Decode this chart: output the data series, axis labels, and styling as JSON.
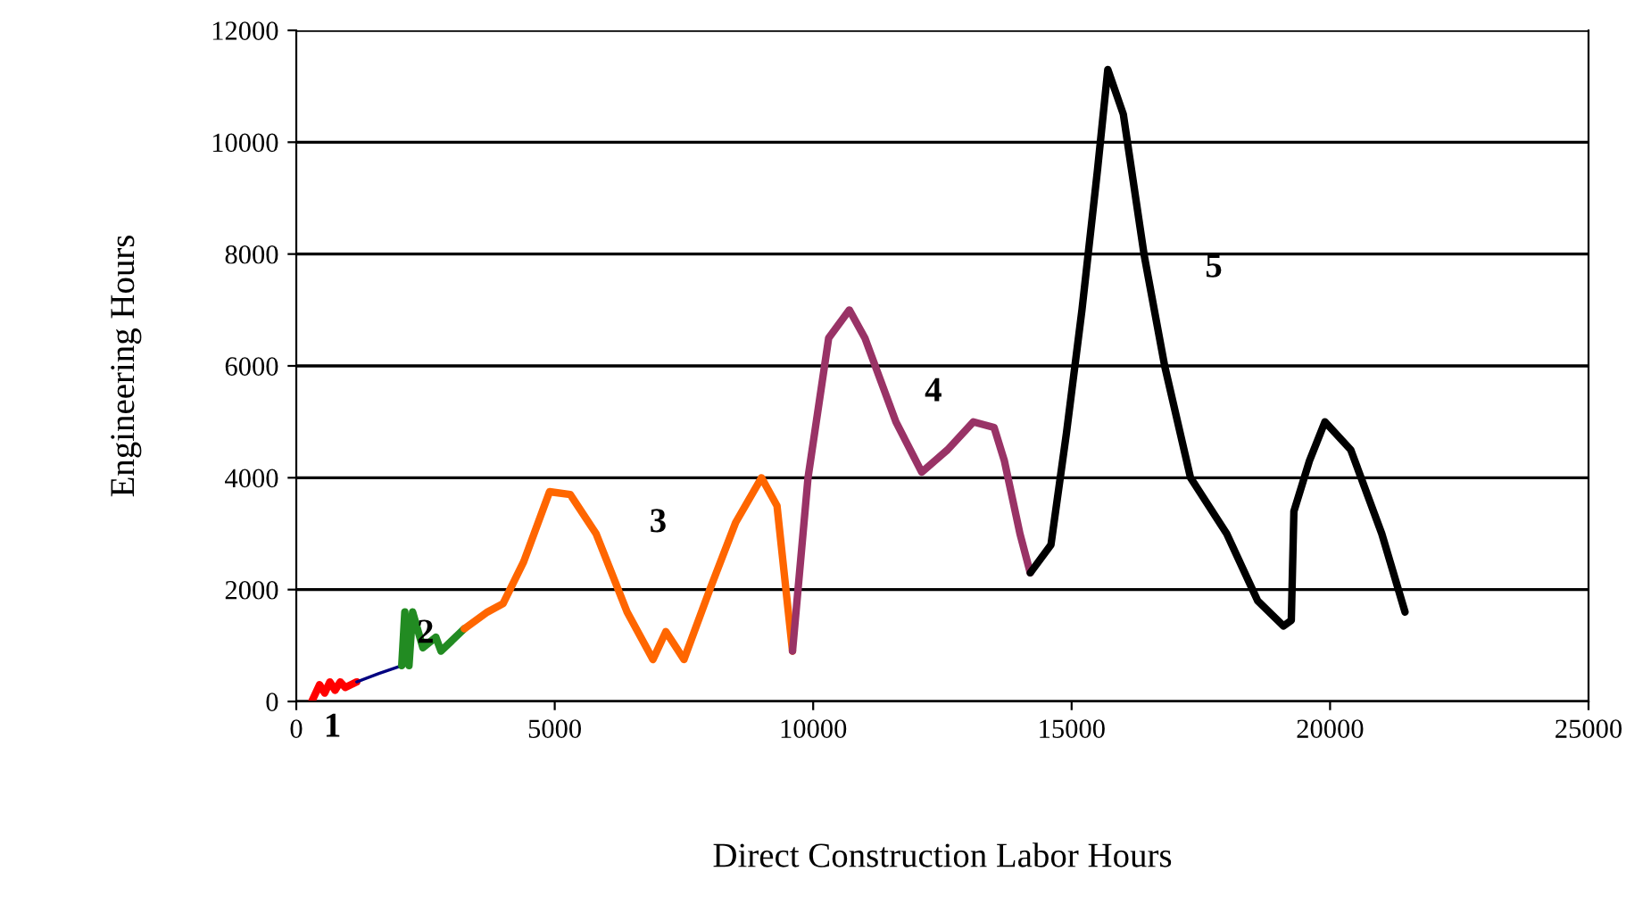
{
  "chart_data": {
    "type": "line",
    "xlabel": "Direct Construction Labor Hours",
    "ylabel": "Engineering Hours",
    "xlim": [
      0,
      25000
    ],
    "ylim": [
      0,
      12000
    ],
    "xticks": [
      0,
      5000,
      10000,
      15000,
      20000,
      25000
    ],
    "yticks": [
      0,
      2000,
      4000,
      6000,
      8000,
      10000,
      12000
    ],
    "grid": "y",
    "legend": false,
    "marker": "none",
    "line_style": "solid",
    "series": [
      {
        "color": "#ff0000",
        "x": [
          300,
          450,
          550,
          650,
          750,
          850,
          950,
          1170
        ],
        "values": [
          0,
          300,
          150,
          350,
          200,
          350,
          250,
          350
        ]
      },
      {
        "color": "#000080",
        "x": [
          1170,
          1600,
          2040
        ],
        "values": [
          350,
          500,
          640
        ]
      },
      {
        "color": "#228b22",
        "x": [
          2040,
          2100,
          2180,
          2250,
          2450,
          2700,
          2800,
          3250
        ],
        "values": [
          640,
          1600,
          640,
          1600,
          960,
          1150,
          900,
          1300
        ]
      },
      {
        "color": "#ff6600",
        "x": [
          3250,
          3700,
          4000,
          4400,
          4900,
          5300,
          5800,
          6400,
          6900,
          7150,
          7500,
          8000,
          8500,
          9000,
          9300,
          9600
        ],
        "values": [
          1300,
          1600,
          1750,
          2500,
          3750,
          3700,
          3000,
          1600,
          750,
          1250,
          750,
          2000,
          3200,
          4000,
          3500,
          900
        ]
      },
      {
        "color": "#993366",
        "x": [
          9600,
          9900,
          10300,
          10700,
          11000,
          11600,
          12100,
          12600,
          13100,
          13500,
          13700,
          14000,
          14200
        ],
        "values": [
          900,
          4000,
          6500,
          7000,
          6500,
          5000,
          4100,
          4500,
          5000,
          4900,
          4300,
          3000,
          2300
        ]
      },
      {
        "color": "#000000",
        "x": [
          14200,
          14600,
          14900,
          15200,
          15500,
          15700,
          16000,
          16400,
          16800,
          17300,
          18000,
          18600,
          19100,
          19250,
          19300,
          19600,
          19900,
          20400,
          21000,
          21450
        ],
        "values": [
          2300,
          2800,
          4800,
          7000,
          9500,
          11300,
          10500,
          8000,
          6000,
          4000,
          3000,
          1800,
          1350,
          1450,
          3400,
          4300,
          5000,
          4500,
          3000,
          1600
        ]
      }
    ],
    "annotations": [
      "1",
      "2",
      "3",
      "4",
      "5"
    ]
  }
}
